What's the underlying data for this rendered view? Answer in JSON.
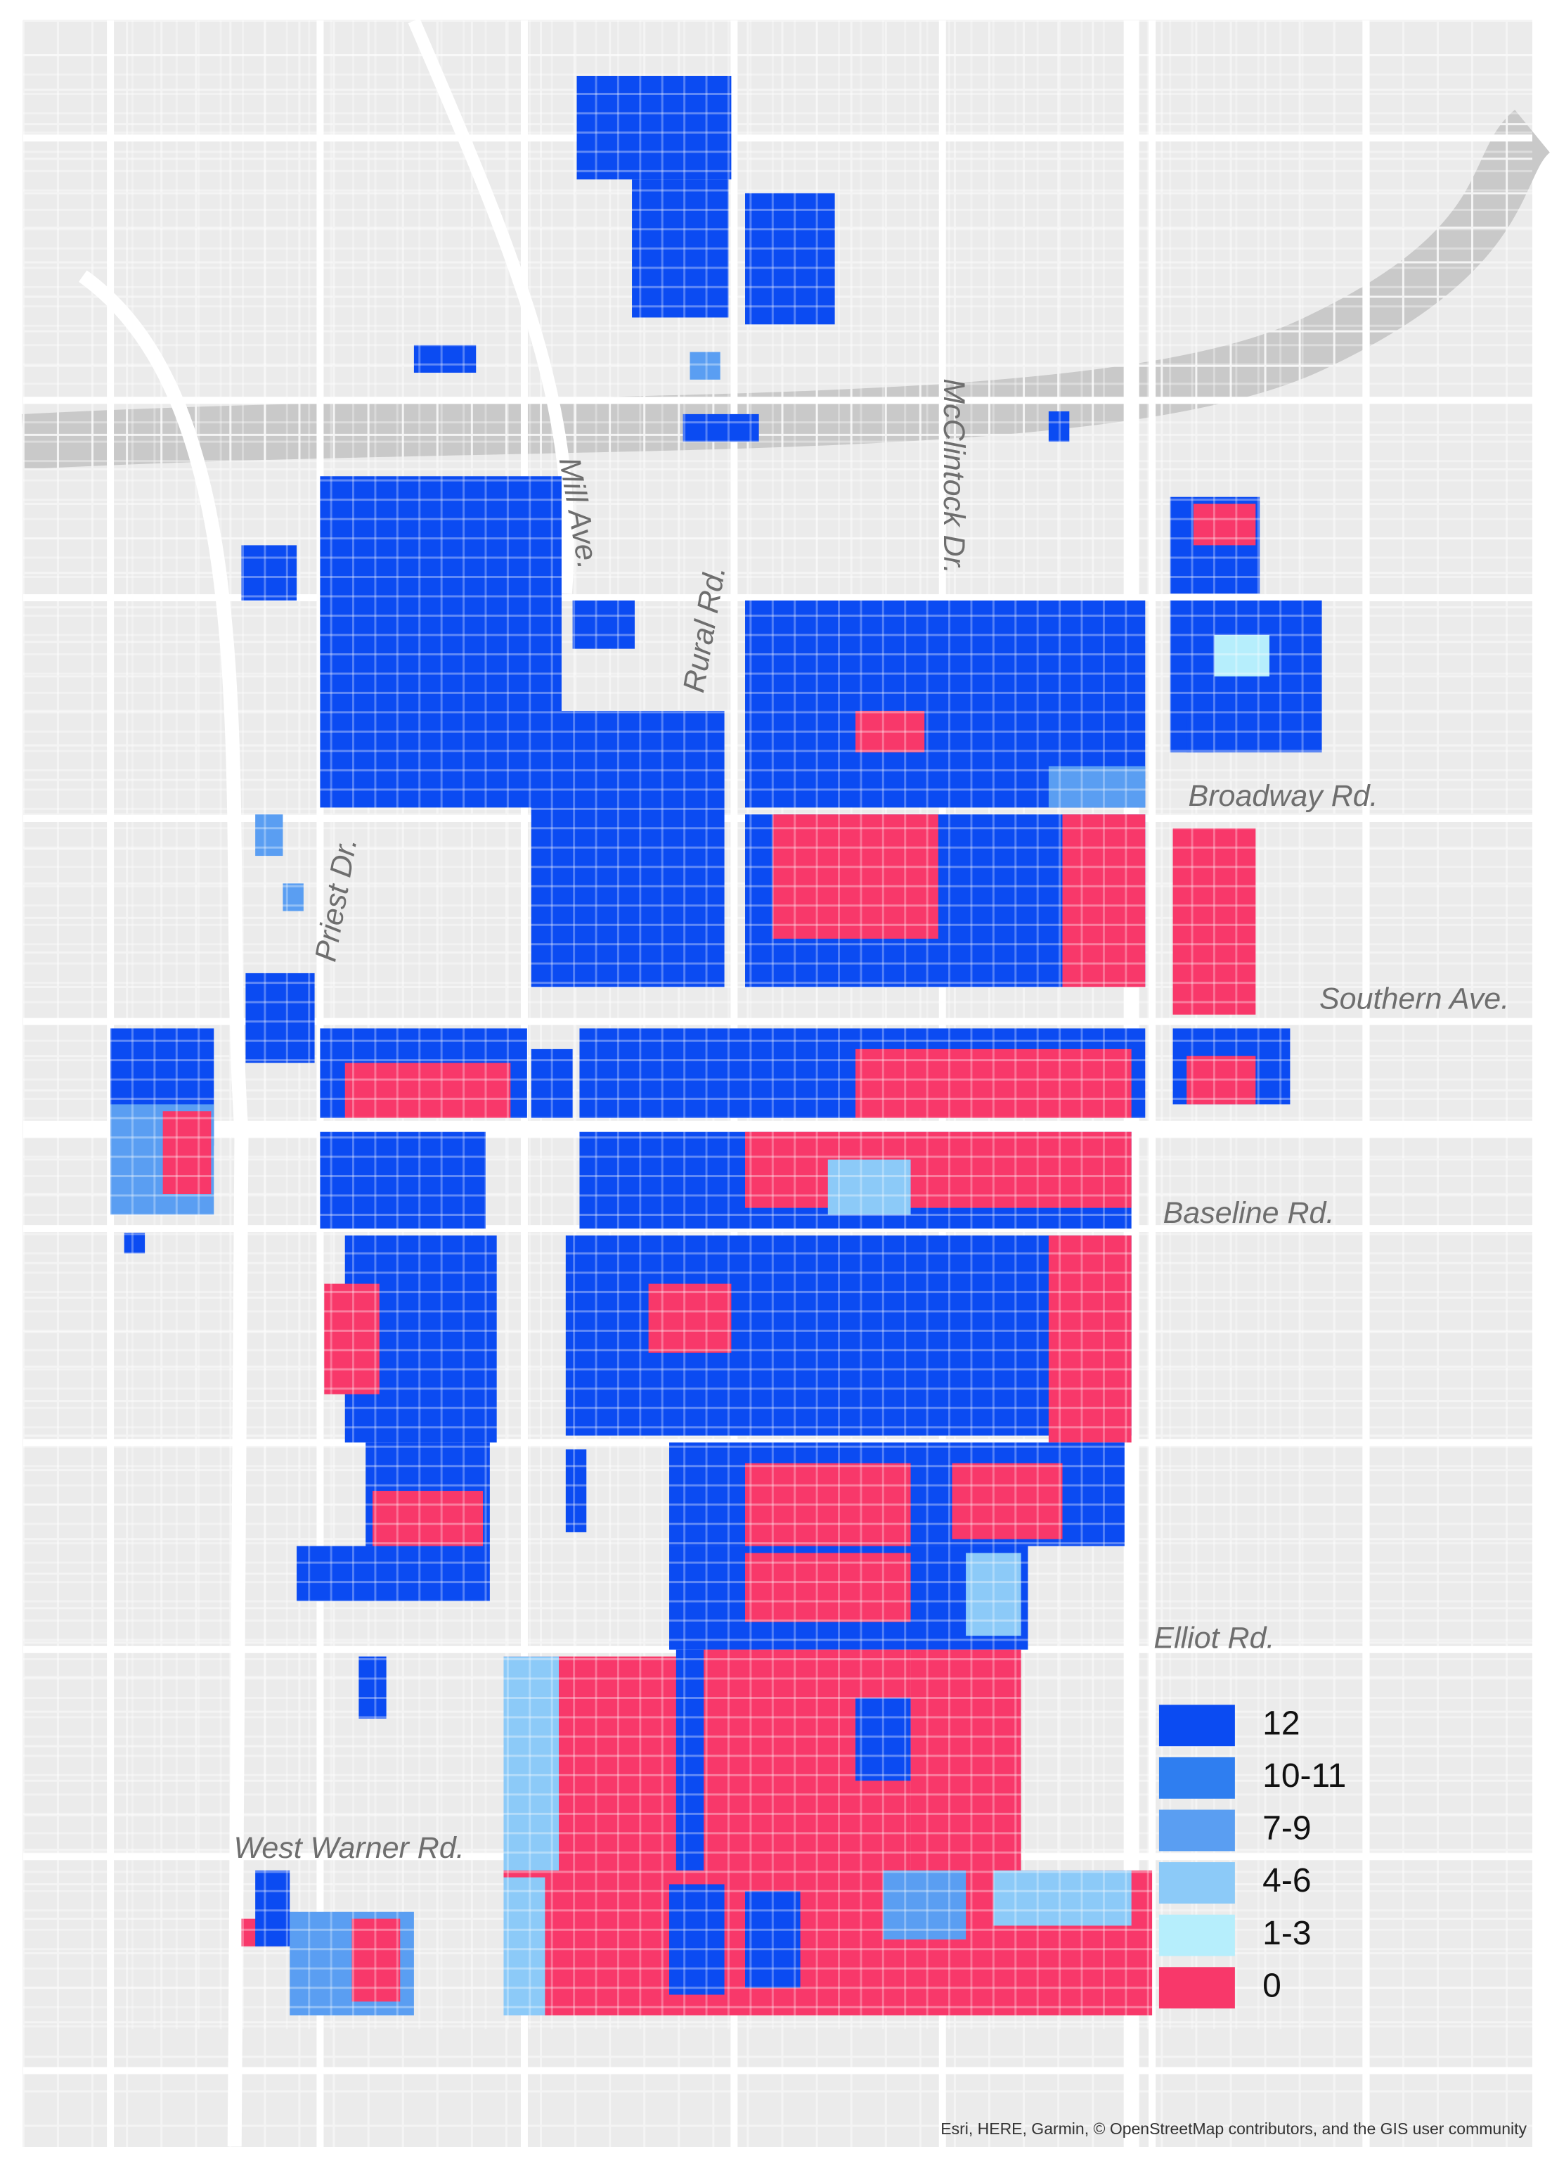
{
  "map": {
    "roads": [
      "Mill Ave.",
      "Rural Rd.",
      "McClintock Dr.",
      "Priest Dr.",
      "Broadway Rd.",
      "Southern Ave.",
      "Baseline Rd.",
      "Elliot Rd.",
      "West Warner Rd."
    ],
    "legend": {
      "items": [
        {
          "label": "12",
          "color": "#0b4bf2"
        },
        {
          "label": "10-11",
          "color": "#2f7ef0"
        },
        {
          "label": "7-9",
          "color": "#5a9ef2"
        },
        {
          "label": "4-6",
          "color": "#8ccaf8"
        },
        {
          "label": "1-3",
          "color": "#b6eefc"
        },
        {
          "label": "0",
          "color": "#f8386a"
        }
      ]
    },
    "attribution": "Esri, HERE, Garmin, © OpenStreetMap contributors, and the GIS user community"
  }
}
